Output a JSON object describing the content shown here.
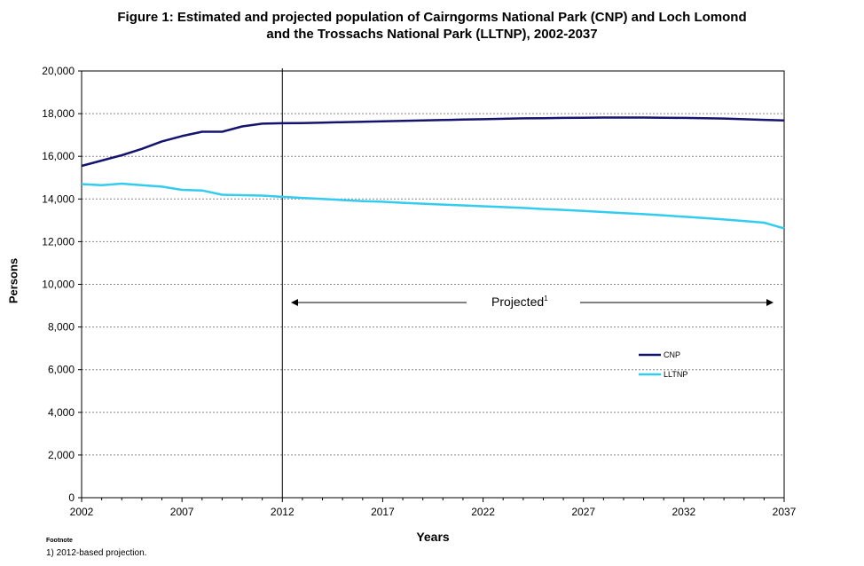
{
  "title_line1": "Figure 1: Estimated and projected population of Cairngorms National Park (CNP) and Loch Lomond",
  "title_line2": "and the Trossachs National Park (LLTNP), 2002-2037",
  "footnote_heading": "Footnote",
  "footnote_text": "1) 2012-based projection.",
  "projected_label": "Projected",
  "projected_superscript": "1",
  "colors": {
    "CNP": "#14146e",
    "LLTNP": "#33ccf0"
  },
  "chart_data": {
    "type": "line",
    "xlabel": "Years",
    "ylabel": "Persons",
    "xlim": [
      2002,
      2037
    ],
    "ylim": [
      0,
      20000
    ],
    "x_ticks": [
      2002,
      2007,
      2012,
      2017,
      2022,
      2027,
      2032,
      2037
    ],
    "x_tick_labels": [
      "2002",
      "2007",
      "2012",
      "2017",
      "2022",
      "2027",
      "2032",
      "2037"
    ],
    "y_ticks": [
      0,
      2000,
      4000,
      6000,
      8000,
      10000,
      12000,
      14000,
      16000,
      18000,
      20000
    ],
    "y_tick_labels": [
      "0",
      "2,000",
      "4,000",
      "6,000",
      "8,000",
      "10,000",
      "12,000",
      "14,000",
      "16,000",
      "18,000",
      "20,000"
    ],
    "grid": "horizontal dashed",
    "legend_position": "right",
    "projection_start": 2012,
    "x": [
      2002,
      2003,
      2004,
      2005,
      2006,
      2007,
      2008,
      2009,
      2010,
      2011,
      2012,
      2013,
      2014,
      2015,
      2016,
      2017,
      2018,
      2019,
      2020,
      2021,
      2022,
      2023,
      2024,
      2025,
      2026,
      2027,
      2028,
      2029,
      2030,
      2031,
      2032,
      2033,
      2034,
      2035,
      2036,
      2037
    ],
    "series": [
      {
        "name": "CNP",
        "values": [
          15550,
          15800,
          16050,
          16350,
          16700,
          16950,
          17150,
          17150,
          17400,
          17530,
          17550,
          17560,
          17580,
          17600,
          17620,
          17640,
          17660,
          17680,
          17700,
          17720,
          17740,
          17760,
          17780,
          17790,
          17800,
          17810,
          17815,
          17815,
          17815,
          17810,
          17800,
          17790,
          17770,
          17740,
          17710,
          17680
        ]
      },
      {
        "name": "LLTNP",
        "values": [
          14700,
          14650,
          14720,
          14650,
          14580,
          14430,
          14400,
          14200,
          14180,
          14160,
          14100,
          14050,
          14000,
          13950,
          13900,
          13870,
          13820,
          13780,
          13740,
          13700,
          13660,
          13620,
          13580,
          13530,
          13490,
          13440,
          13390,
          13340,
          13290,
          13230,
          13170,
          13110,
          13040,
          12970,
          12890,
          12620
        ]
      }
    ]
  }
}
